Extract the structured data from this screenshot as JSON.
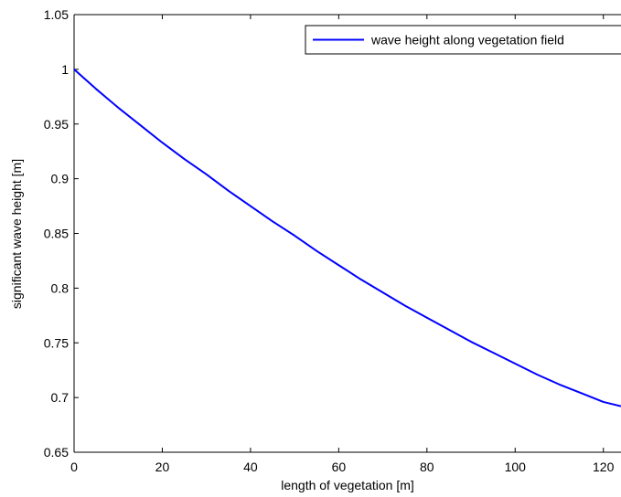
{
  "chart_data": {
    "type": "line",
    "title": "",
    "xlabel": "length of vegetation [m]",
    "ylabel": "significant wave height [m]",
    "xlim": [
      0,
      124
    ],
    "ylim": [
      0.65,
      1.05
    ],
    "xticks": [
      0,
      20,
      40,
      60,
      80,
      100,
      120
    ],
    "yticks": [
      0.65,
      0.7,
      0.75,
      0.8,
      0.85,
      0.9,
      0.95,
      1,
      1.05
    ],
    "xtick_labels": [
      "0",
      "20",
      "40",
      "60",
      "80",
      "100",
      "120"
    ],
    "ytick_labels": [
      "0.65",
      "0.7",
      "0.75",
      "0.8",
      "0.85",
      "0.9",
      "0.95",
      "1",
      "1.05"
    ],
    "grid": false,
    "legend_position": "top-right",
    "series": [
      {
        "name": "wave height along vegetation field",
        "color": "#0000ff",
        "x": [
          0,
          5,
          10,
          15,
          20,
          25,
          30,
          35,
          40,
          45,
          50,
          55,
          60,
          65,
          70,
          75,
          80,
          85,
          90,
          95,
          100,
          105,
          110,
          115,
          120,
          124
        ],
        "y": [
          1.0,
          0.982,
          0.965,
          0.949,
          0.933,
          0.918,
          0.904,
          0.889,
          0.875,
          0.861,
          0.848,
          0.834,
          0.821,
          0.808,
          0.796,
          0.784,
          0.773,
          0.762,
          0.751,
          0.741,
          0.731,
          0.721,
          0.712,
          0.704,
          0.696,
          0.692
        ]
      }
    ]
  }
}
